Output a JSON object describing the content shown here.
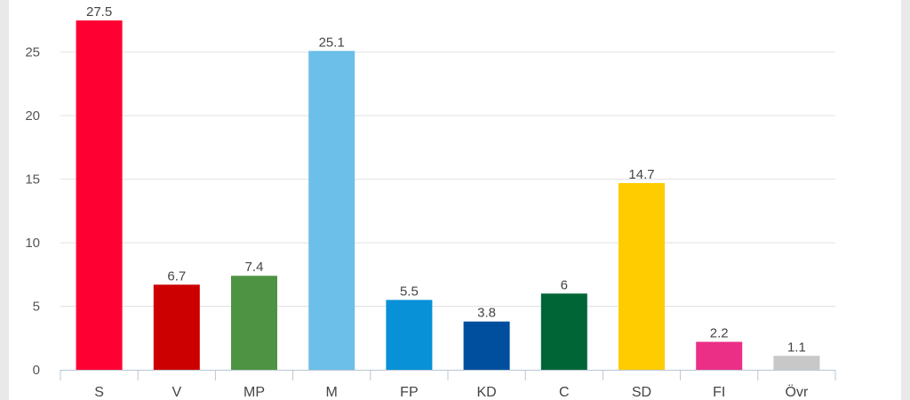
{
  "chart_data": {
    "type": "bar",
    "title": "",
    "xlabel": "",
    "ylabel": "",
    "ylim": [
      0,
      27.5
    ],
    "yticks": [
      0,
      5,
      10,
      15,
      20,
      25
    ],
    "grid": true,
    "categories": [
      "S",
      "V",
      "MP",
      "M",
      "FP",
      "KD",
      "C",
      "SD",
      "FI",
      "Övr"
    ],
    "values": [
      27.5,
      6.7,
      7.4,
      25.1,
      5.5,
      3.8,
      6,
      14.7,
      2.2,
      1.1
    ],
    "value_labels": [
      "27.5",
      "6.7",
      "7.4",
      "25.1",
      "5.5",
      "3.8",
      "6",
      "14.7",
      "2.2",
      "1.1"
    ],
    "colors": [
      "#ff0033",
      "#cc0000",
      "#4e9343",
      "#6cbfe8",
      "#0891d6",
      "#004f9e",
      "#006536",
      "#ffcc00",
      "#ec2f86",
      "#c8c8c8"
    ]
  }
}
